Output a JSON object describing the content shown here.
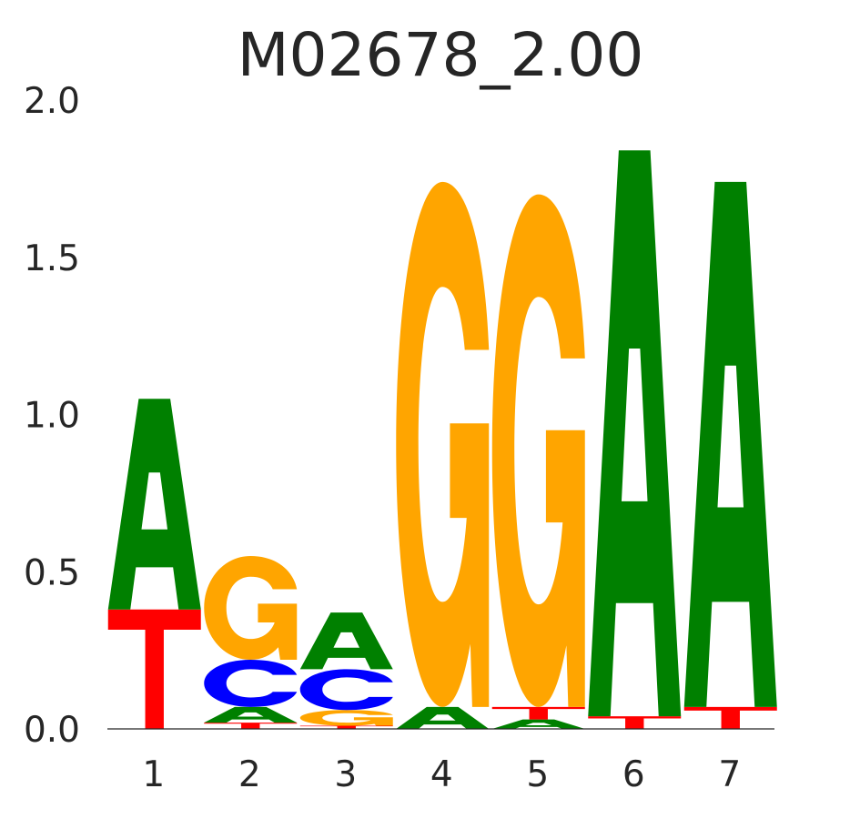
{
  "chart_data": {
    "type": "sequence-logo",
    "title": "M02678_2.00",
    "ylim": [
      0,
      2.0
    ],
    "yticks": [
      "0.0",
      "0.5",
      "1.0",
      "1.5",
      "2.0"
    ],
    "categories": [
      "1",
      "2",
      "3",
      "4",
      "5",
      "6",
      "7"
    ],
    "colors": {
      "A": "#008000",
      "C": "#0000ff",
      "G": "#ffa500",
      "T": "#ff0000"
    },
    "positions": [
      {
        "pos": "1",
        "stack": [
          {
            "base": "T",
            "value": 0.38
          },
          {
            "base": "A",
            "value": 0.67
          }
        ]
      },
      {
        "pos": "2",
        "stack": [
          {
            "base": "T",
            "value": 0.02
          },
          {
            "base": "A",
            "value": 0.05
          },
          {
            "base": "C",
            "value": 0.15
          },
          {
            "base": "G",
            "value": 0.33
          }
        ]
      },
      {
        "pos": "3",
        "stack": [
          {
            "base": "T",
            "value": 0.01
          },
          {
            "base": "G",
            "value": 0.05
          },
          {
            "base": "C",
            "value": 0.13
          },
          {
            "base": "A",
            "value": 0.18
          }
        ]
      },
      {
        "pos": "4",
        "stack": [
          {
            "base": "A",
            "value": 0.07
          },
          {
            "base": "G",
            "value": 1.67
          }
        ]
      },
      {
        "pos": "5",
        "stack": [
          {
            "base": "A",
            "value": 0.03
          },
          {
            "base": "T",
            "value": 0.04
          },
          {
            "base": "G",
            "value": 1.63
          }
        ]
      },
      {
        "pos": "6",
        "stack": [
          {
            "base": "T",
            "value": 0.04
          },
          {
            "base": "A",
            "value": 1.8
          }
        ]
      },
      {
        "pos": "7",
        "stack": [
          {
            "base": "T",
            "value": 0.07
          },
          {
            "base": "A",
            "value": 1.67
          }
        ]
      }
    ]
  }
}
